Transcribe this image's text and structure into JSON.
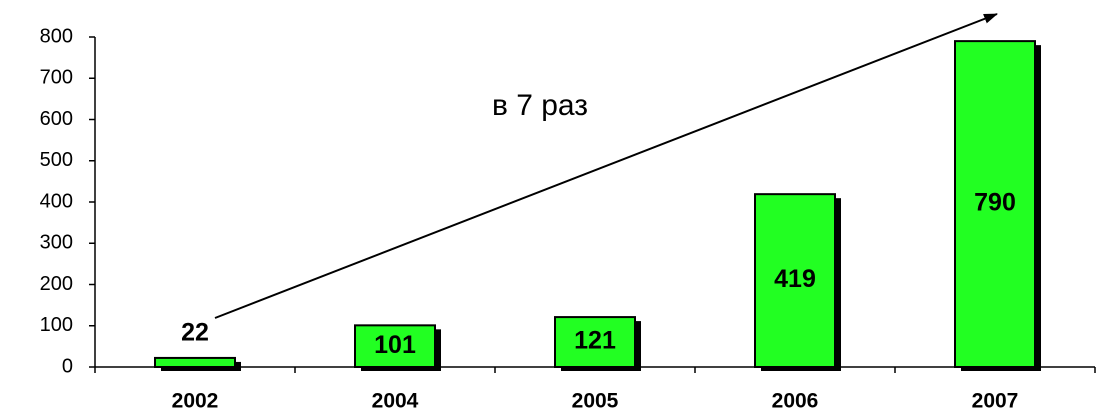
{
  "chart_data": {
    "type": "bar",
    "annotation": "в 7 раз",
    "categories": [
      "2002",
      "2004",
      "2005",
      "2006",
      "2007"
    ],
    "values": [
      22,
      101,
      121,
      419,
      790
    ],
    "color": "#22ff22",
    "ylim": [
      0,
      800
    ],
    "yticks": [
      0,
      100,
      200,
      300,
      400,
      500,
      600,
      700,
      800
    ],
    "grid": false
  }
}
